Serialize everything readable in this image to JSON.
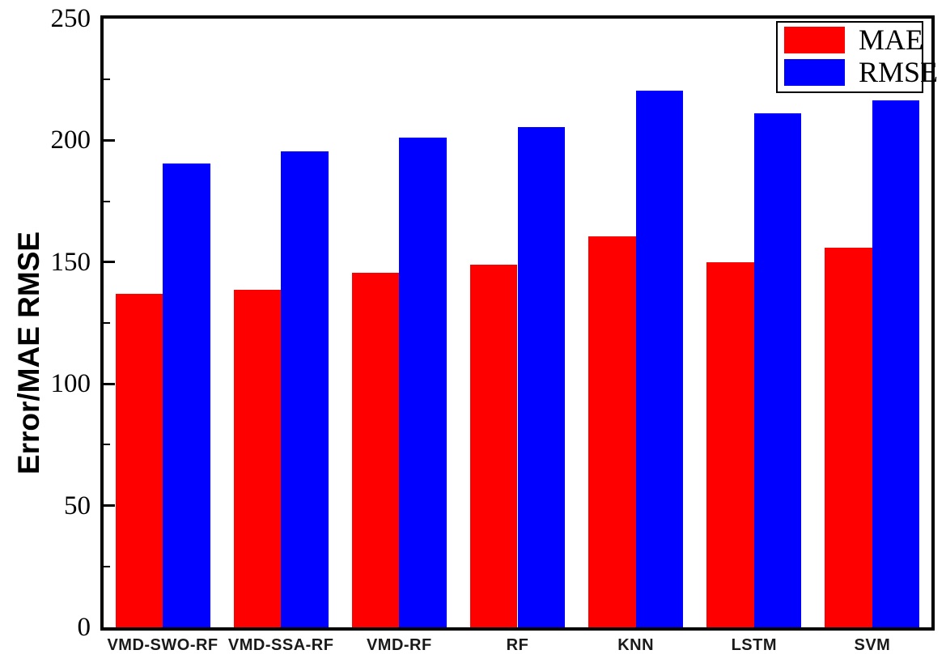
{
  "chart_data": {
    "type": "bar",
    "title": "",
    "xlabel": "",
    "ylabel": "Error/MAE RMSE",
    "categories": [
      "VMD-SWO-RF",
      "VMD-SSA-RF",
      "VMD-RF",
      "RF",
      "KNN",
      "LSTM",
      "SVM"
    ],
    "series": [
      {
        "name": "MAE",
        "color": "#ff0000",
        "values": [
          137,
          138.5,
          145.5,
          149,
          160.5,
          150,
          156
        ]
      },
      {
        "name": "RMSE",
        "color": "#0000ff",
        "values": [
          190.5,
          195.5,
          201,
          205.5,
          220.5,
          211,
          216.5
        ]
      }
    ],
    "ylim": [
      0,
      250
    ],
    "y_major_ticks": [
      0,
      50,
      100,
      150,
      200,
      250
    ],
    "y_minor_step": 25,
    "grid": false,
    "legend_position": "top-right",
    "axis_color": "#000000"
  },
  "legend": {
    "items": [
      {
        "label": "MAE",
        "color": "#ff0000"
      },
      {
        "label": "RMSE",
        "color": "#0000ff"
      }
    ]
  }
}
